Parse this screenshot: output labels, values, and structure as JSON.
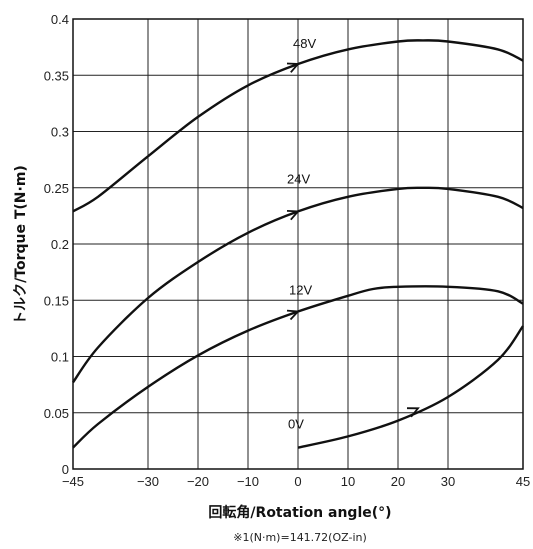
{
  "chart_data": {
    "type": "line",
    "xlabel": "回転角/Rotation angle(°)",
    "ylabel": "トルク/Torque T(N·m)",
    "footnote": "※1(N·m)=141.72(OZ-in)",
    "xlim": [
      -45,
      45
    ],
    "ylim": [
      0,
      0.4
    ],
    "xticks": [
      {
        "v": -45,
        "label": "−45"
      },
      {
        "v": -30,
        "label": "−30"
      },
      {
        "v": -20,
        "label": "−20"
      },
      {
        "v": -10,
        "label": "−10"
      },
      {
        "v": 0,
        "label": "0"
      },
      {
        "v": 10,
        "label": "10"
      },
      {
        "v": 20,
        "label": "20"
      },
      {
        "v": 30,
        "label": "30"
      },
      {
        "v": 45,
        "label": "45"
      }
    ],
    "yticks": [
      {
        "v": 0,
        "label": "0"
      },
      {
        "v": 0.05,
        "label": "0.05"
      },
      {
        "v": 0.1,
        "label": "0.1"
      },
      {
        "v": 0.15,
        "label": "0.15"
      },
      {
        "v": 0.2,
        "label": "0.2"
      },
      {
        "v": 0.25,
        "label": "0.25"
      },
      {
        "v": 0.3,
        "label": "0.3"
      },
      {
        "v": 0.35,
        "label": "0.35"
      },
      {
        "v": 0.4,
        "label": "0.4"
      }
    ],
    "grid": true,
    "series": [
      {
        "name": "48V",
        "x": [
          -45,
          -40,
          -30,
          -20,
          -10,
          0,
          10,
          20,
          25,
          30,
          40,
          45
        ],
        "y": [
          0.229,
          0.242,
          0.278,
          0.313,
          0.341,
          0.36,
          0.373,
          0.38,
          0.381,
          0.38,
          0.373,
          0.363
        ]
      },
      {
        "name": "24V",
        "x": [
          -45,
          -40,
          -30,
          -20,
          -10,
          0,
          10,
          20,
          25,
          30,
          40,
          45
        ],
        "y": [
          0.077,
          0.108,
          0.152,
          0.184,
          0.21,
          0.229,
          0.242,
          0.249,
          0.25,
          0.249,
          0.242,
          0.232
        ]
      },
      {
        "name": "12V",
        "x": [
          -45,
          -40,
          -30,
          -20,
          -10,
          0,
          10,
          15,
          20,
          30,
          40,
          45
        ],
        "y": [
          0.019,
          0.04,
          0.073,
          0.101,
          0.123,
          0.14,
          0.154,
          0.16,
          0.162,
          0.162,
          0.158,
          0.147
        ]
      },
      {
        "name": "0V",
        "x": [
          0,
          10,
          20,
          30,
          40,
          45
        ],
        "y": [
          0.019,
          0.029,
          0.043,
          0.064,
          0.097,
          0.127
        ]
      }
    ],
    "arrows": [
      {
        "series": "48V",
        "x": 0,
        "y": 0.36
      },
      {
        "series": "24V",
        "x": 0,
        "y": 0.229
      },
      {
        "series": "12V",
        "x": 0,
        "y": 0.14
      },
      {
        "series": "0V",
        "x": 24,
        "y": 0.054
      }
    ]
  }
}
